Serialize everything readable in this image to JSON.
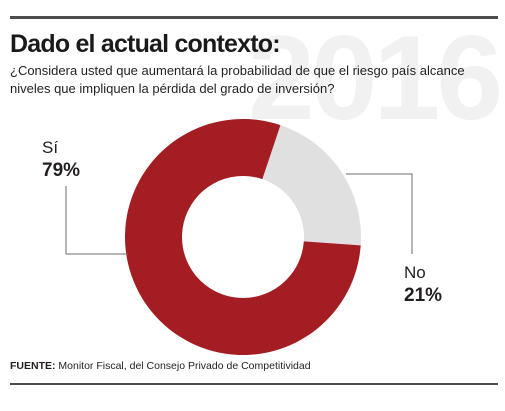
{
  "title": "Dado el actual contexto:",
  "question": "¿Considera usted que aumentará la probabilidad de que el riesgo país alcance niveles que impliquen la pérdida del grado de inversión?",
  "watermark_text": "2016",
  "source": {
    "label": "FUENTE:",
    "text": "Monitor Fiscal, del Consejo Privado de Competitividad"
  },
  "chart_data": {
    "type": "pie",
    "donut": true,
    "categories": [
      "Sí",
      "No"
    ],
    "values": [
      79,
      21
    ],
    "value_labels": [
      "79%",
      "21%"
    ],
    "colors": [
      "#a31d22",
      "#e0e0e1"
    ],
    "title": "Dado el actual contexto:",
    "legend": "none"
  }
}
